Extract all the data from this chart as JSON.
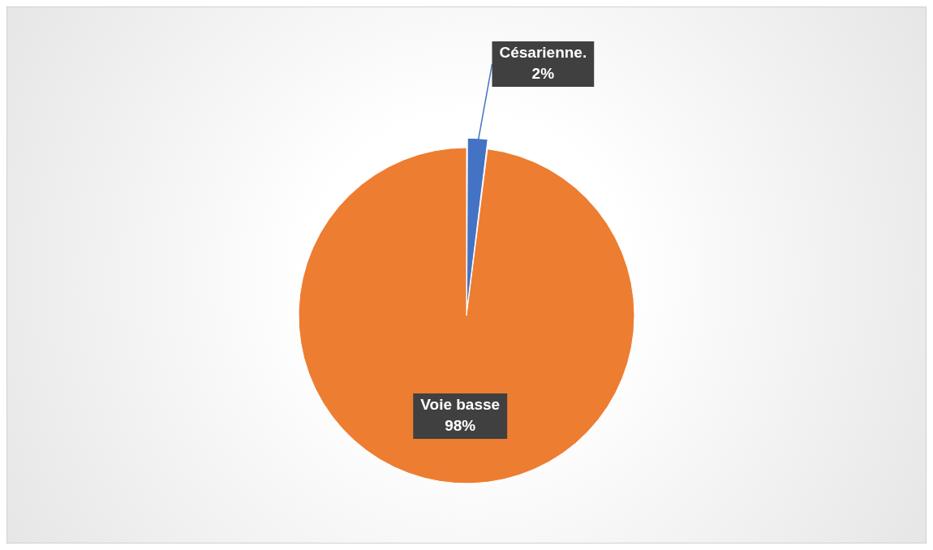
{
  "chart_data": {
    "type": "pie",
    "categories": [
      "Césarienne.",
      "Voie basse"
    ],
    "values": [
      2,
      98
    ],
    "value_labels": [
      "2%",
      "98%"
    ],
    "colors": [
      "#4472c4",
      "#ed7d31"
    ],
    "legend": false
  }
}
